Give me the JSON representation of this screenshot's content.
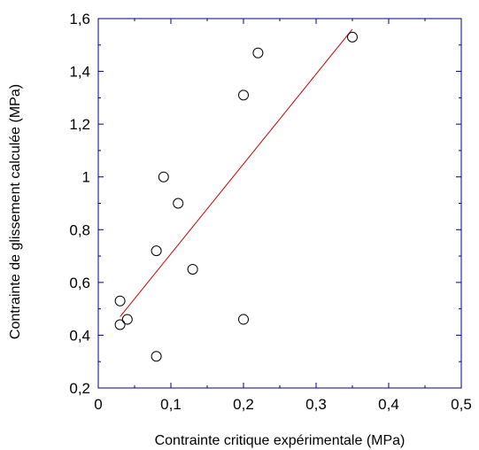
{
  "chart_data": {
    "type": "scatter",
    "title": "",
    "xlabel": "Contrainte critique expérimentale (MPa)",
    "ylabel": "Contrainte de glissement calculée (MPa)",
    "xlim": [
      0,
      0.5
    ],
    "ylim": [
      0.2,
      1.6
    ],
    "x_ticks": [
      0,
      0.1,
      0.2,
      0.3,
      0.4,
      0.5
    ],
    "x_tick_labels": [
      "0",
      "0,1",
      "0,2",
      "0,3",
      "0,4",
      "0,5"
    ],
    "y_ticks": [
      0.2,
      0.4,
      0.6,
      0.8,
      1.0,
      1.2,
      1.4,
      1.6
    ],
    "y_tick_labels": [
      "0,2",
      "0,4",
      "0,6",
      "0,8",
      "1",
      "1,2",
      "1,4",
      "1,6"
    ],
    "grid": false,
    "legend": "none",
    "series": [
      {
        "marker": "open-circle",
        "points": [
          {
            "x": 0.03,
            "y": 0.53
          },
          {
            "x": 0.03,
            "y": 0.44
          },
          {
            "x": 0.04,
            "y": 0.46
          },
          {
            "x": 0.08,
            "y": 0.72
          },
          {
            "x": 0.08,
            "y": 0.32
          },
          {
            "x": 0.09,
            "y": 1.0
          },
          {
            "x": 0.11,
            "y": 0.9
          },
          {
            "x": 0.13,
            "y": 0.65
          },
          {
            "x": 0.2,
            "y": 1.31
          },
          {
            "x": 0.2,
            "y": 0.46
          },
          {
            "x": 0.22,
            "y": 1.47
          },
          {
            "x": 0.35,
            "y": 1.53
          }
        ]
      }
    ],
    "fit_line": {
      "x": [
        0.03,
        0.35
      ],
      "y": [
        0.47,
        1.56
      ]
    },
    "colors": {
      "fit_line": "#cc0000",
      "frame": "#000080",
      "marker": "#000000"
    }
  }
}
